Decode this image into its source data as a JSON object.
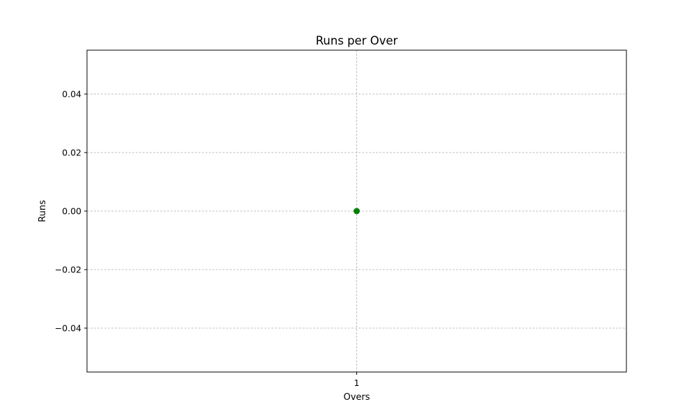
{
  "chart_data": {
    "type": "scatter",
    "title": "Runs per Over",
    "xlabel": "Overs",
    "ylabel": "Runs",
    "x": [
      1
    ],
    "y": [
      0
    ],
    "xticks": [
      1
    ],
    "xtick_labels": [
      "1"
    ],
    "xlim": [
      0.9,
      1.1
    ],
    "ylim": [
      -0.055,
      0.055
    ],
    "yticks": [
      -0.04,
      -0.02,
      0.0,
      0.02,
      0.04
    ],
    "ytick_labels": [
      "−0.04",
      "−0.02",
      "0.00",
      "0.02",
      "0.04"
    ],
    "grid": true,
    "marker_color": "#008000",
    "grid_color": "#b0b0b0"
  }
}
